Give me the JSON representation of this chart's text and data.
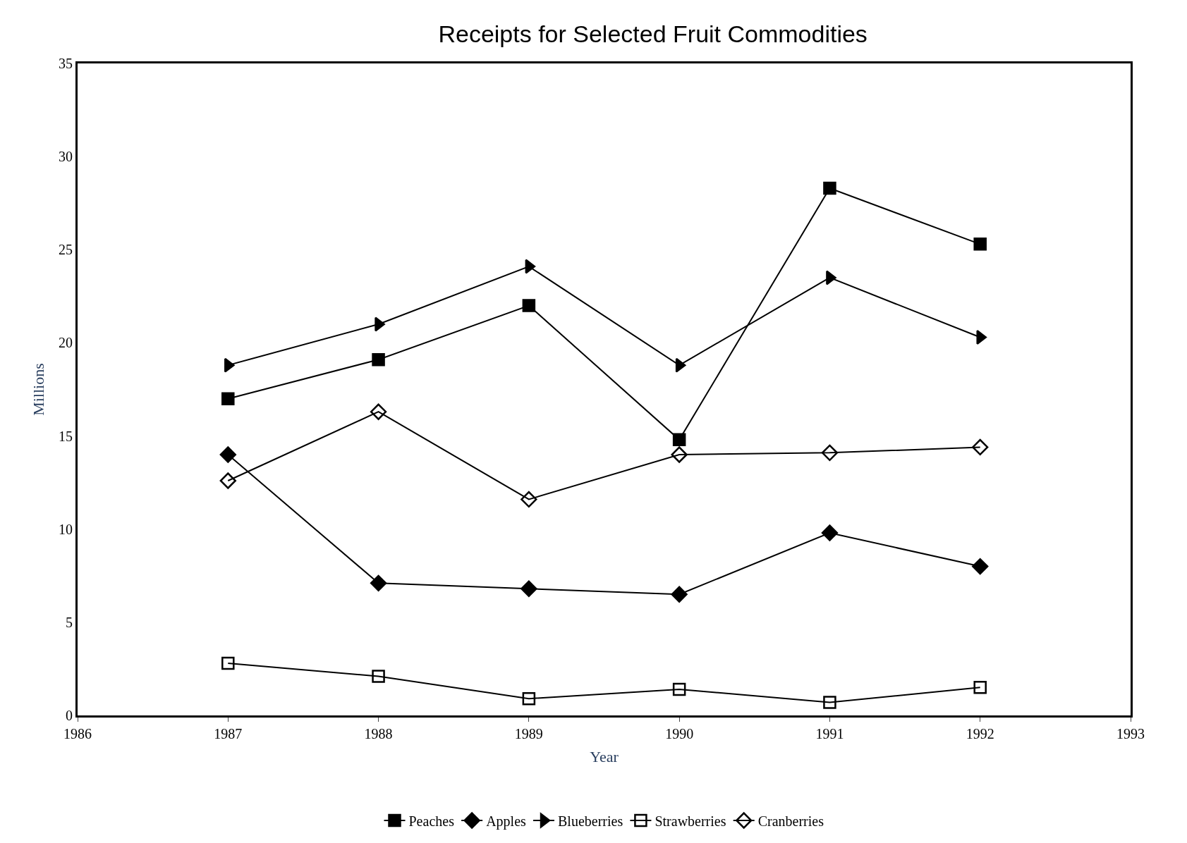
{
  "chart_data": {
    "type": "line",
    "title": "Receipts for Selected Fruit Commodities",
    "xlabel": "Year",
    "ylabel": "Millions",
    "x": [
      1987,
      1988,
      1989,
      1990,
      1991,
      1992
    ],
    "xlim": [
      1986,
      1993
    ],
    "xticks": [
      1986,
      1987,
      1988,
      1989,
      1990,
      1991,
      1992,
      1993
    ],
    "ylim": [
      0,
      35
    ],
    "yticks": [
      0,
      5,
      10,
      15,
      20,
      25,
      30,
      35
    ],
    "legend": "bottom",
    "series": [
      {
        "name": "Peaches",
        "color": "#000000",
        "marker": "square",
        "values": [
          17.0,
          19.1,
          22.0,
          14.8,
          28.3,
          25.3
        ]
      },
      {
        "name": "Apples",
        "color": "#000000",
        "marker": "diamond",
        "values": [
          14.0,
          7.1,
          6.8,
          6.5,
          9.8,
          8.0
        ]
      },
      {
        "name": "Blueberries",
        "color": "#000000",
        "marker": "triangle",
        "values": [
          18.8,
          21.0,
          24.1,
          18.8,
          23.5,
          20.3
        ]
      },
      {
        "name": "Strawberries",
        "color": "#000000",
        "marker": "square-open",
        "values": [
          2.8,
          2.1,
          0.9,
          1.4,
          0.7,
          1.5
        ]
      },
      {
        "name": "Cranberries",
        "color": "#000000",
        "marker": "diamond-open",
        "values": [
          12.6,
          16.3,
          11.6,
          14.0,
          14.1,
          14.4
        ]
      }
    ]
  }
}
